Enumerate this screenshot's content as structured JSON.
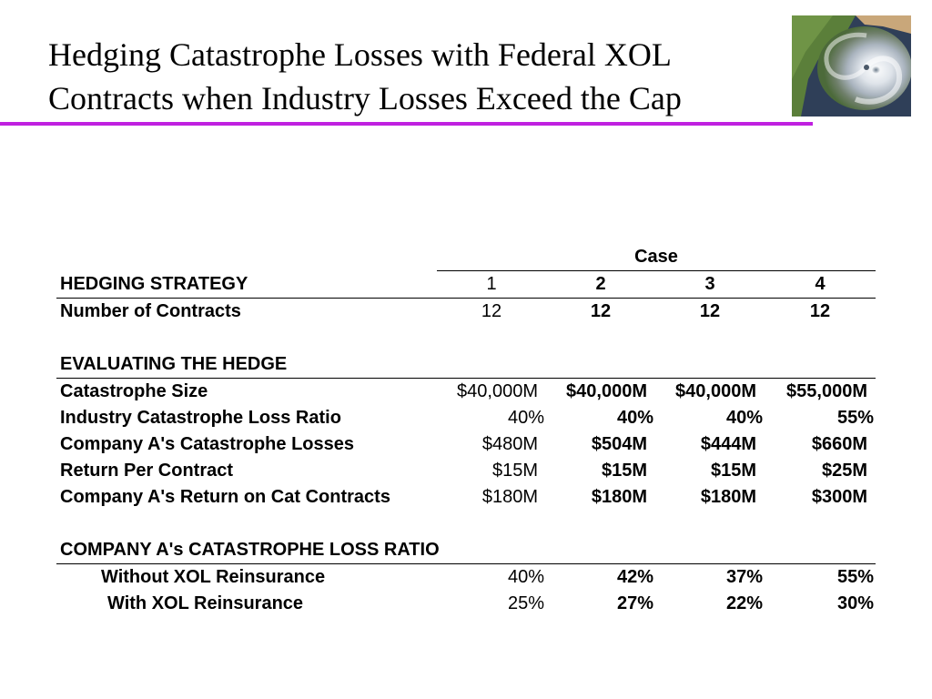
{
  "slide": {
    "title_line1": "Hedging Catastrophe Losses with Federal XOL",
    "title_line2": "Contracts when Industry Losses Exceed the Cap",
    "accent_color": "#c020e0",
    "image": "hurricane-satellite-image"
  },
  "table": {
    "case_header": "Case",
    "strategy_label": "HEDGING STRATEGY",
    "case_numbers": [
      "1",
      "2",
      "3",
      "4"
    ],
    "contracts": {
      "label": "Number of Contracts",
      "values": [
        "12",
        "12",
        "12",
        "12"
      ]
    },
    "evaluating_label": "EVALUATING THE HEDGE",
    "evaluating_rows": [
      {
        "label": "Catastrophe Size",
        "values": [
          "$40,000M",
          "$40,000M",
          "$40,000M",
          "$55,000M"
        ]
      },
      {
        "label": "Industry Catastrophe Loss Ratio",
        "values": [
          "40%",
          "40%",
          "40%",
          "55%"
        ]
      },
      {
        "label": "Company A's Catastrophe Losses",
        "values": [
          "$480M",
          "$504M",
          "$444M",
          "$660M"
        ]
      },
      {
        "label": "Return Per Contract",
        "values": [
          "$15M",
          "$15M",
          "$15M",
          "$25M"
        ]
      },
      {
        "label": "Company A's Return on Cat Contracts",
        "values": [
          "$180M",
          "$180M",
          "$180M",
          "$300M"
        ]
      }
    ],
    "ratio_label": "COMPANY A's CATASTROPHE LOSS RATIO",
    "ratio_rows": [
      {
        "label": "Without XOL Reinsurance",
        "values": [
          "40%",
          "42%",
          "37%",
          "55%"
        ]
      },
      {
        "label": "With XOL Reinsurance",
        "values": [
          "25%",
          "27%",
          "22%",
          "30%"
        ]
      }
    ]
  }
}
